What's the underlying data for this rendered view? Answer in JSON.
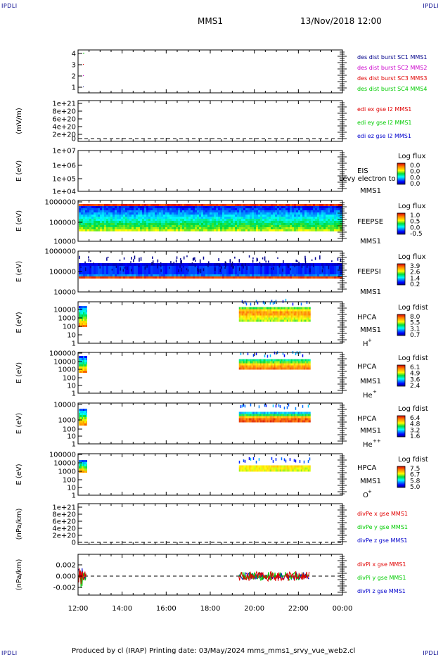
{
  "corners": {
    "tl": "IPDLI",
    "tr": "IPDLI",
    "bl": "IPDLI",
    "br": "IPDLI"
  },
  "header": {
    "spacecraft": "MMS1",
    "datetime": "13/Nov/2018 12:00"
  },
  "footer": {
    "text": "Produced by cl (IRAP)   Printing date: 03/May/2024   mms_mms1_srvy_vue_web2.cl"
  },
  "colors": {
    "red": "#e00000",
    "green": "#00cc00",
    "blue": "#0000cc",
    "magenta": "#cc00cc",
    "navy": "#00008b"
  },
  "chart_data": {
    "type": "stacked-timeseries",
    "x_ticks": [
      "12:00",
      "14:00",
      "16:00",
      "18:00",
      "20:00",
      "22:00",
      "00:00"
    ],
    "x_range_hours": [
      12,
      24
    ],
    "panels": [
      {
        "id": "burst",
        "ylabel": "",
        "yticks": [
          "4",
          "3",
          "2",
          "1"
        ],
        "legend": [
          {
            "text": "des dist burst SC1 MMS1",
            "color": "#00008b"
          },
          {
            "text": "des dist burst SC2 MMS2",
            "color": "#cc00cc"
          },
          {
            "text": "des dist burst SC3 MMS3",
            "color": "#e00000"
          },
          {
            "text": "des dist burst SC4 MMS4",
            "color": "#00cc00"
          }
        ]
      },
      {
        "id": "edi",
        "ylabel": "(mV/m)",
        "yticks": [
          "1e+21",
          "8e+20",
          "6e+20",
          "4e+20",
          "2e+20",
          "0"
        ],
        "legend": [
          {
            "text": "edi ex gse l2 MMS1",
            "color": "#e00000"
          },
          {
            "text": "edi ey gse l2 MMS1",
            "color": "#00cc00"
          },
          {
            "text": "edi ez gse l2 MMS1",
            "color": "#0000cc"
          }
        ]
      },
      {
        "id": "eis",
        "ylabel": "E (eV)",
        "yticks": [
          "1e+07",
          "1e+06",
          "1e+05",
          "1e+04"
        ],
        "labels": [
          "EIS",
          "MMS1"
        ],
        "overlay": "Levy electron to",
        "cbar_title": "Log flux",
        "cbar_ticks": [
          "0.0",
          "0.0",
          "0.0",
          "0.0"
        ]
      },
      {
        "id": "feepse",
        "ylabel": "E (eV)",
        "yticks": [
          "1000000",
          "100000",
          "10000"
        ],
        "labels": [
          "FEEPSE",
          "MMS1"
        ],
        "cbar_title": "Log flux",
        "cbar_ticks": [
          "1.0",
          "0.5",
          "0.0",
          "-0.5"
        ]
      },
      {
        "id": "feepsi",
        "ylabel": "E (eV)",
        "yticks": [
          "1000000",
          "100000",
          "10000"
        ],
        "labels": [
          "FEEPSI",
          "MMS1"
        ],
        "cbar_title": "Log flux",
        "cbar_ticks": [
          "3.9",
          "2.6",
          "1.4",
          "0.2"
        ]
      },
      {
        "id": "hpca_h",
        "ylabel": "E (eV)",
        "yticks": [
          "10000",
          "1000",
          "100",
          "10",
          "1"
        ],
        "labels": [
          "HPCA",
          "MMS1",
          "H",
          "+"
        ],
        "cbar_title": "Log fdist",
        "cbar_ticks": [
          "8.0",
          "5.5",
          "3.1",
          "0.7"
        ]
      },
      {
        "id": "hpca_he",
        "ylabel": "E (eV)",
        "yticks": [
          "100000",
          "10000",
          "1000",
          "100",
          "10",
          "1"
        ],
        "labels": [
          "HPCA",
          "MMS1",
          "He",
          "+"
        ],
        "cbar_title": "Log fdist",
        "cbar_ticks": [
          "6.1",
          "4.9",
          "3.6",
          "2.4"
        ]
      },
      {
        "id": "hpca_he2",
        "ylabel": "E (eV)",
        "yticks": [
          "10000",
          "1000",
          "100",
          "10",
          "1"
        ],
        "labels": [
          "HPCA",
          "MMS1",
          "He",
          "++"
        ],
        "cbar_title": "Log fdist",
        "cbar_ticks": [
          "6.4",
          "4.8",
          "3.2",
          "1.6"
        ]
      },
      {
        "id": "hpca_o",
        "ylabel": "E (eV)",
        "yticks": [
          "100000",
          "10000",
          "1000",
          "100",
          "10",
          "1"
        ],
        "labels": [
          "HPCA",
          "MMS1",
          "O",
          "+"
        ],
        "cbar_title": "Log fdist",
        "cbar_ticks": [
          "7.5",
          "6.7",
          "5.8",
          "5.0"
        ]
      },
      {
        "id": "divpe",
        "ylabel": "(nPa/km)",
        "yticks": [
          "1e+21",
          "8e+20",
          "6e+20",
          "4e+20",
          "2e+20",
          "0"
        ],
        "legend": [
          {
            "text": "divPe x gse MMS1",
            "color": "#e00000"
          },
          {
            "text": "divPe y gse MMS1",
            "color": "#00cc00"
          },
          {
            "text": "divPe z gse MMS1",
            "color": "#0000cc"
          }
        ]
      },
      {
        "id": "divpi",
        "ylabel": "(nPa/km)",
        "yticks": [
          "0.002",
          "0.000",
          "-0.002"
        ],
        "legend": [
          {
            "text": "divPi x gse MMS1",
            "color": "#e00000"
          },
          {
            "text": "divPi y gse MMS1",
            "color": "#00cc00"
          },
          {
            "text": "divPi z gse MMS1",
            "color": "#0000cc"
          }
        ]
      }
    ]
  }
}
